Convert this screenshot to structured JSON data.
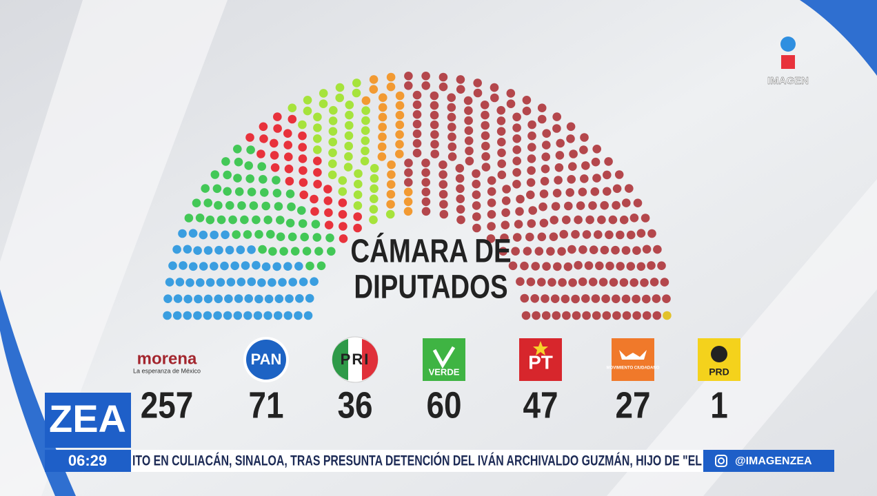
{
  "chart_data": {
    "type": "parliament",
    "title": "CÁMARA DE DIPUTADOS",
    "categories": [
      "morena",
      "PAN",
      "PRI",
      "VERDE",
      "PT",
      "MOVIMIENTO CIUDADANO",
      "PRD"
    ],
    "tagline": "La esperanza de México",
    "values": [
      257,
      71,
      36,
      60,
      47,
      27,
      1
    ],
    "colors": [
      "#b4474c",
      "#3a9ee0",
      "#e8323c",
      "#43c857",
      "#a6e33c",
      "#f29a32",
      "#e2c22c"
    ]
  },
  "broadcast": {
    "network": "IMAGEN",
    "show": "ZEA",
    "time": "06:29",
    "ticker": "ITO EN CULIACÁN, SINALOA, TRAS PRESUNTA DETENCIÓN DEL IVÁN ARCHIVALDO GUZMÁN, HIJO DE \"EL",
    "handle": "@IMAGENZEA"
  }
}
